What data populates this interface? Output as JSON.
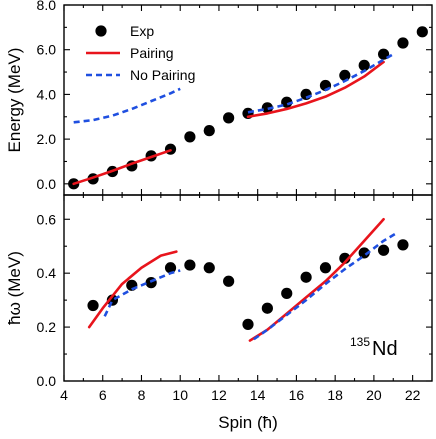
{
  "chart_data": [
    {
      "type": "scatter",
      "panel": "top",
      "ylabel": "Energy (MeV)",
      "xlim": [
        4,
        23
      ],
      "ylim": [
        -0.5,
        8.0
      ],
      "yticks": [
        "0.0",
        "2.0",
        "4.0",
        "6.0",
        "8.0"
      ],
      "grid": false,
      "legend": {
        "placement": "top-left",
        "entries": [
          {
            "label": "Exp",
            "marker": "circle",
            "color": "#000000"
          },
          {
            "label": "Pairing",
            "line": "solid",
            "color": "#e8141c"
          },
          {
            "label": "No Pairing",
            "line": "dashed",
            "color": "#1f4fe0"
          }
        ]
      },
      "series": [
        {
          "name": "Exp",
          "kind": "points",
          "color": "#000000",
          "x": [
            4.5,
            5.5,
            6.5,
            7.5,
            8.5,
            9.5,
            10.5,
            11.5,
            12.5,
            13.5,
            14.5,
            15.5,
            16.5,
            17.5,
            18.5,
            19.5,
            20.5,
            21.5,
            22.5
          ],
          "y": [
            0.0,
            0.22,
            0.55,
            0.8,
            1.25,
            1.55,
            2.1,
            2.38,
            2.95,
            3.15,
            3.4,
            3.65,
            4.0,
            4.4,
            4.85,
            5.3,
            5.8,
            6.3,
            6.8
          ]
        },
        {
          "name": "Pairing",
          "kind": "line",
          "color": "#e8141c",
          "segments": [
            {
              "x": [
                4.5,
                5.5,
                6.5,
                7.5,
                8.5,
                9.5
              ],
              "y": [
                0.0,
                0.28,
                0.58,
                0.9,
                1.2,
                1.5
              ]
            },
            {
              "x": [
                13.5,
                14.5,
                15.5,
                16.5,
                17.5,
                18.5,
                19.5,
                20.5
              ],
              "y": [
                3.0,
                3.15,
                3.35,
                3.6,
                3.9,
                4.3,
                4.8,
                5.45
              ]
            }
          ]
        },
        {
          "name": "No Pairing",
          "kind": "line",
          "color": "#1f4fe0",
          "segments": [
            {
              "x": [
                4.5,
                5.5,
                6.5,
                7.5,
                8.5,
                9.5,
                10.0
              ],
              "y": [
                2.75,
                2.85,
                3.05,
                3.35,
                3.7,
                4.05,
                4.25
              ]
            },
            {
              "x": [
                13.5,
                14.5,
                15.5,
                16.5,
                17.5,
                18.5,
                19.5,
                20.5,
                21.0
              ],
              "y": [
                3.2,
                3.35,
                3.55,
                3.85,
                4.2,
                4.6,
                5.05,
                5.55,
                5.8
              ]
            }
          ]
        }
      ]
    },
    {
      "type": "scatter",
      "panel": "bottom",
      "xlabel": "Spin (ħ)",
      "ylabel": "ħω (MeV)",
      "xlim": [
        4,
        23
      ],
      "ylim": [
        0.0,
        0.69
      ],
      "xticks": [
        "4",
        "6",
        "8",
        "10",
        "12",
        "14",
        "16",
        "18",
        "20",
        "22"
      ],
      "yticks": [
        "0.0",
        "0.2",
        "0.4",
        "0.6"
      ],
      "grid": false,
      "annotation": {
        "mass": "135",
        "symbol": "Nd",
        "placement": "bottom-right"
      },
      "series": [
        {
          "name": "Exp",
          "kind": "points",
          "color": "#000000",
          "x": [
            5.5,
            6.5,
            7.5,
            8.5,
            9.5,
            10.5,
            11.5,
            12.5,
            13.5,
            14.5,
            15.5,
            16.5,
            17.5,
            18.5,
            19.5,
            20.5,
            21.5
          ],
          "y": [
            0.28,
            0.3,
            0.355,
            0.365,
            0.42,
            0.43,
            0.42,
            0.37,
            0.21,
            0.27,
            0.325,
            0.385,
            0.42,
            0.455,
            0.475,
            0.485,
            0.505
          ]
        },
        {
          "name": "Pairing",
          "kind": "line",
          "color": "#e8141c",
          "segments": [
            {
              "x": [
                5.3,
                6.0,
                7.0,
                8.0,
                9.0,
                9.8
              ],
              "y": [
                0.2,
                0.27,
                0.36,
                0.42,
                0.465,
                0.48
              ]
            },
            {
              "x": [
                13.6,
                14.5,
                15.5,
                16.5,
                17.5,
                18.5,
                19.5,
                20.5
              ],
              "y": [
                0.15,
                0.19,
                0.25,
                0.31,
                0.37,
                0.44,
                0.52,
                0.6
              ]
            }
          ]
        },
        {
          "name": "No Pairing",
          "kind": "line",
          "color": "#1f4fe0",
          "segments": [
            {
              "x": [
                6.1,
                6.5,
                7.5,
                8.5,
                9.5,
                10.0
              ],
              "y": [
                0.24,
                0.3,
                0.34,
                0.37,
                0.4,
                0.41
              ]
            },
            {
              "x": [
                13.8,
                14.5,
                15.5,
                16.5,
                17.5,
                18.5,
                19.5,
                20.5,
                21.2
              ],
              "y": [
                0.155,
                0.19,
                0.245,
                0.3,
                0.36,
                0.415,
                0.465,
                0.52,
                0.55
              ]
            }
          ]
        }
      ]
    }
  ]
}
